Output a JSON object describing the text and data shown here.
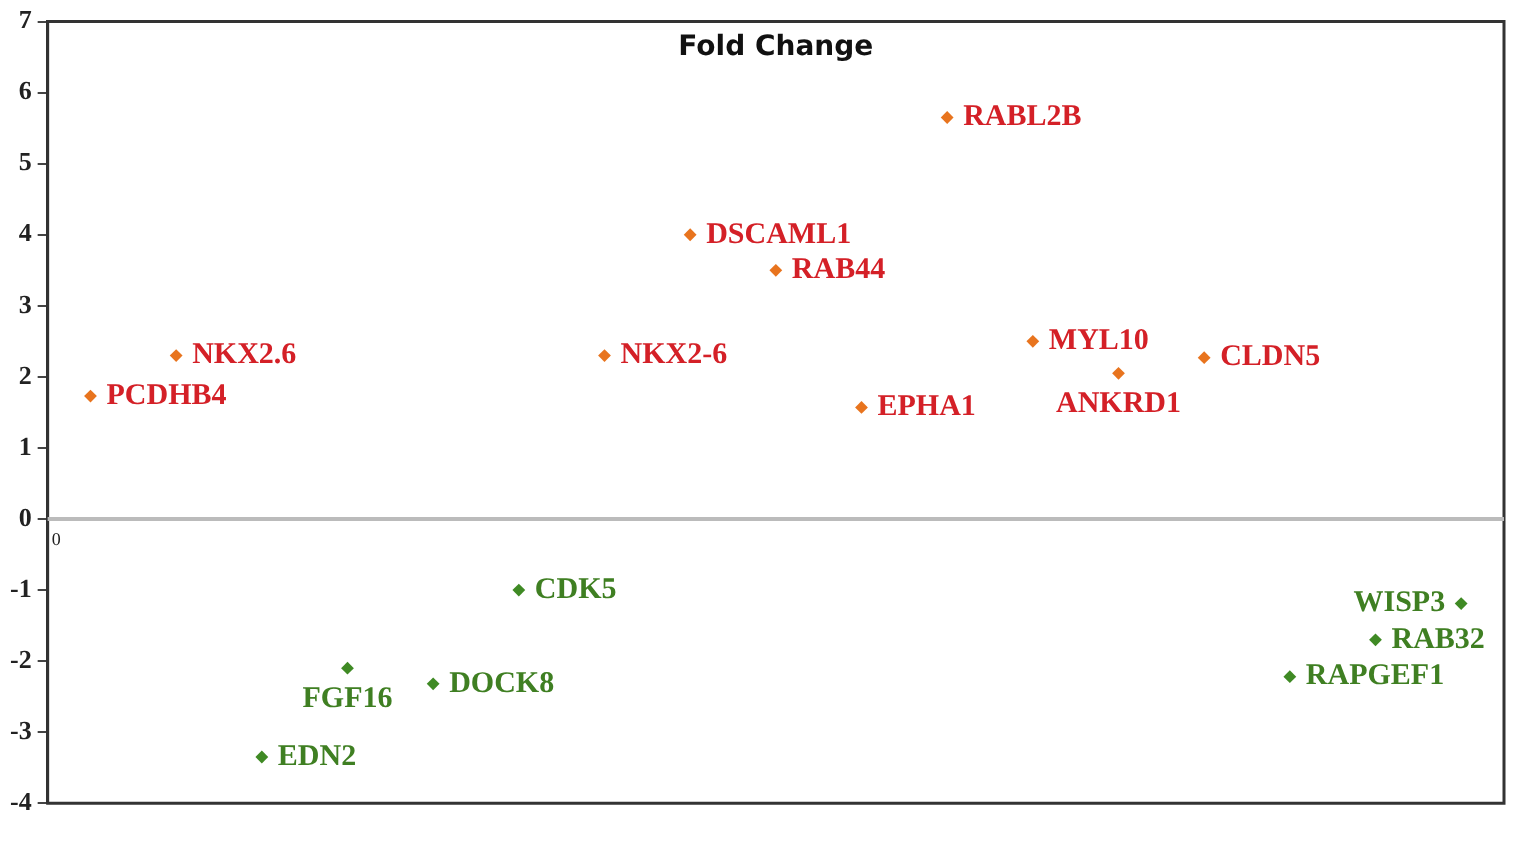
{
  "chart_data": {
    "type": "scatter",
    "title": "Fold Change",
    "categories": [
      null,
      null,
      null,
      null,
      null,
      null,
      null,
      null,
      null,
      null,
      null,
      null,
      null,
      null,
      null,
      null,
      null
    ],
    "ylim": [
      -4,
      7
    ],
    "yticks": [
      -4,
      -3,
      -2,
      -1,
      0,
      1,
      2,
      3,
      4,
      5,
      6,
      7
    ],
    "grid": false,
    "legend": false,
    "marker": "diamond",
    "series": [
      {
        "name": "PCDHB4",
        "color": "#e8741e",
        "values": [
          1.73,
          null,
          null,
          null,
          null,
          null,
          null,
          null,
          null,
          null,
          null,
          null,
          null,
          null,
          null,
          null,
          null
        ]
      },
      {
        "name": "NKX2.6",
        "color": "#e8741e",
        "values": [
          null,
          2.3,
          null,
          null,
          null,
          null,
          null,
          null,
          null,
          null,
          null,
          null,
          null,
          null,
          null,
          null,
          null
        ]
      },
      {
        "name": "EDN2",
        "color": "#3f8a24",
        "values": [
          null,
          null,
          -3.35,
          null,
          null,
          null,
          null,
          null,
          null,
          null,
          null,
          null,
          null,
          null,
          null,
          null,
          null
        ]
      },
      {
        "name": "FGF16",
        "color": "#3f8a24",
        "values": [
          null,
          null,
          null,
          -2.1,
          null,
          null,
          null,
          null,
          null,
          null,
          null,
          null,
          null,
          null,
          null,
          null,
          null
        ]
      },
      {
        "name": "DOCK8",
        "color": "#3f8a24",
        "values": [
          null,
          null,
          null,
          null,
          -2.32,
          null,
          null,
          null,
          null,
          null,
          null,
          null,
          null,
          null,
          null,
          null,
          null
        ]
      },
      {
        "name": "CDK5",
        "color": "#3f8a24",
        "values": [
          null,
          null,
          null,
          null,
          null,
          -1.0,
          null,
          null,
          null,
          null,
          null,
          null,
          null,
          null,
          null,
          null,
          null
        ]
      },
      {
        "name": "NKX2-6",
        "color": "#e8741e",
        "values": [
          null,
          null,
          null,
          null,
          null,
          null,
          2.3,
          null,
          null,
          null,
          null,
          null,
          null,
          null,
          null,
          null,
          null
        ]
      },
      {
        "name": "DSCAML1",
        "color": "#e8741e",
        "values": [
          null,
          null,
          null,
          null,
          null,
          null,
          null,
          4.0,
          null,
          null,
          null,
          null,
          null,
          null,
          null,
          null,
          null
        ]
      },
      {
        "name": "RAB44",
        "color": "#e8741e",
        "values": [
          null,
          null,
          null,
          null,
          null,
          null,
          null,
          null,
          3.5,
          null,
          null,
          null,
          null,
          null,
          null,
          null,
          null
        ]
      },
      {
        "name": "EPHA1",
        "color": "#e8741e",
        "values": [
          null,
          null,
          null,
          null,
          null,
          null,
          null,
          null,
          null,
          1.57,
          null,
          null,
          null,
          null,
          null,
          null,
          null
        ]
      },
      {
        "name": "RABL2B",
        "color": "#e8741e",
        "values": [
          null,
          null,
          null,
          null,
          null,
          null,
          null,
          null,
          null,
          null,
          5.65,
          null,
          null,
          null,
          null,
          null,
          null
        ]
      },
      {
        "name": "MYL10",
        "color": "#e8741e",
        "values": [
          null,
          null,
          null,
          null,
          null,
          null,
          null,
          null,
          null,
          null,
          null,
          2.5,
          null,
          null,
          null,
          null,
          null
        ]
      },
      {
        "name": "ANKRD1",
        "color": "#e8741e",
        "values": [
          null,
          null,
          null,
          null,
          null,
          null,
          null,
          null,
          null,
          null,
          null,
          null,
          2.05,
          null,
          null,
          null,
          null
        ]
      },
      {
        "name": "CLDN5",
        "color": "#e8741e",
        "values": [
          null,
          null,
          null,
          null,
          null,
          null,
          null,
          null,
          null,
          null,
          null,
          null,
          null,
          2.27,
          null,
          null,
          null
        ]
      },
      {
        "name": "RAPGEF1",
        "color": "#3f8a24",
        "values": [
          null,
          null,
          null,
          null,
          null,
          null,
          null,
          null,
          null,
          null,
          null,
          null,
          null,
          null,
          -2.22,
          null,
          null
        ]
      },
      {
        "name": "RAB32",
        "color": "#3f8a24",
        "values": [
          null,
          null,
          null,
          null,
          null,
          null,
          null,
          null,
          null,
          null,
          null,
          null,
          null,
          null,
          null,
          -1.7,
          null
        ]
      },
      {
        "name": "WISP3",
        "color": "#3f8a24",
        "values": [
          null,
          null,
          null,
          null,
          null,
          null,
          null,
          null,
          null,
          null,
          null,
          null,
          null,
          null,
          null,
          null,
          -1.19
        ]
      }
    ],
    "ref_lines": [
      {
        "axis": "y",
        "value": 0,
        "color": "#bbbbbb"
      }
    ],
    "annotations": [
      "0"
    ]
  }
}
